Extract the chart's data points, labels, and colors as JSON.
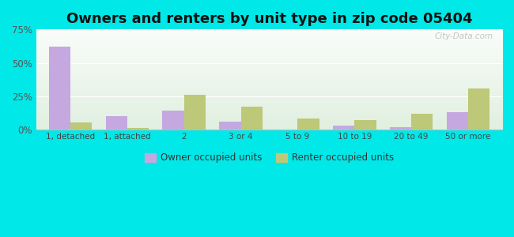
{
  "title": "Owners and renters by unit type in zip code 05404",
  "categories": [
    "1, detached",
    "1, attached",
    "2",
    "3 or 4",
    "5 to 9",
    "10 to 19",
    "20 to 49",
    "50 or more"
  ],
  "owner_values": [
    62,
    10,
    14,
    6,
    0,
    3,
    2,
    13
  ],
  "renter_values": [
    5,
    1,
    26,
    17,
    8,
    7,
    12,
    31
  ],
  "owner_color": "#c4a8df",
  "renter_color": "#bdc878",
  "ylim": [
    0,
    75
  ],
  "yticks": [
    0,
    25,
    50,
    75
  ],
  "ytick_labels": [
    "0%",
    "25%",
    "50%",
    "75%"
  ],
  "background_color": "#00e8e8",
  "legend_owner": "Owner occupied units",
  "legend_renter": "Renter occupied units",
  "watermark": "City-Data.com",
  "title_fontsize": 13,
  "bar_width": 0.38
}
